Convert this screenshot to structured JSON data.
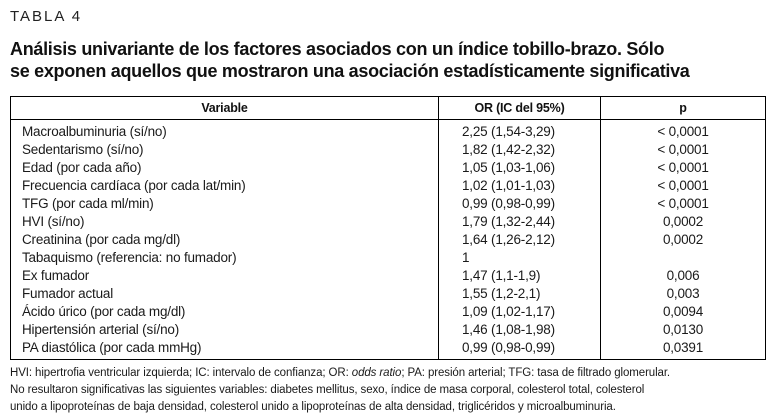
{
  "table_label": "TABLA 4",
  "title": {
    "line1": "Análisis univariante de los factores asociados con un índice tobillo-brazo. Sólo",
    "line2": "se exponen aquellos que mostraron una asociación estadísticamente significativa"
  },
  "table": {
    "headers": [
      "Variable",
      "OR (IC del 95%)",
      "p"
    ],
    "rows": [
      {
        "variable": "Macroalbuminuria (sí/no)",
        "or": "2,25 (1,54-3,29)",
        "p": "< 0,0001"
      },
      {
        "variable": "Sedentarismo (sí/no)",
        "or": "1,82 (1,42-2,32)",
        "p": "< 0,0001"
      },
      {
        "variable": "Edad (por cada año)",
        "or": "1,05 (1,03-1,06)",
        "p": "< 0,0001"
      },
      {
        "variable": "Frecuencia cardíaca (por cada lat/min)",
        "or": "1,02 (1,01-1,03)",
        "p": "< 0,0001"
      },
      {
        "variable": "TFG (por cada ml/min)",
        "or": "0,99 (0,98-0,99)",
        "p": "< 0,0001"
      },
      {
        "variable": "HVI (sí/no)",
        "or": "1,79 (1,32-2,44)",
        "p": "0,0002"
      },
      {
        "variable": "Creatinina (por cada mg/dl)",
        "or": "1,64 (1,26-2,12)",
        "p": "0,0002"
      },
      {
        "variable": "Tabaquismo (referencia: no fumador)",
        "or": "1",
        "p": ""
      },
      {
        "variable": "Ex fumador",
        "or": "1,47 (1,1-1,9)",
        "p": "0,006"
      },
      {
        "variable": "Fumador actual",
        "or": "1,55 (1,2-2,1)",
        "p": "0,003"
      },
      {
        "variable": "Ácido úrico (por cada mg/dl)",
        "or": "1,09 (1,02-1,17)",
        "p": "0,0094"
      },
      {
        "variable": "Hipertensión arterial (sí/no)",
        "or": "1,46 (1,08-1,98)",
        "p": "0,0130"
      },
      {
        "variable": "PA diastólica (por cada mmHg)",
        "or": "0,99 (0,98-0,99)",
        "p": "0,0391"
      }
    ]
  },
  "footnote": {
    "line1_pre": "HVI: hipertrofia ventricular izquierda; IC: intervalo de confianza; OR: ",
    "line1_italic": "odds ratio",
    "line1_post": "; PA: presión arterial; TFG: tasa de filtrado glomerular.",
    "line2": "No resultaron significativas las siguientes variables: diabetes mellitus, sexo, índice de masa corporal, colesterol total, colesterol",
    "line3": "unido a lipoproteínas de baja densidad, colesterol unido a lipoproteínas de alta densidad, triglicéridos y microalbuminuria."
  },
  "colors": {
    "text": "#1a1a1a",
    "border": "#000000",
    "background": "#ffffff"
  }
}
